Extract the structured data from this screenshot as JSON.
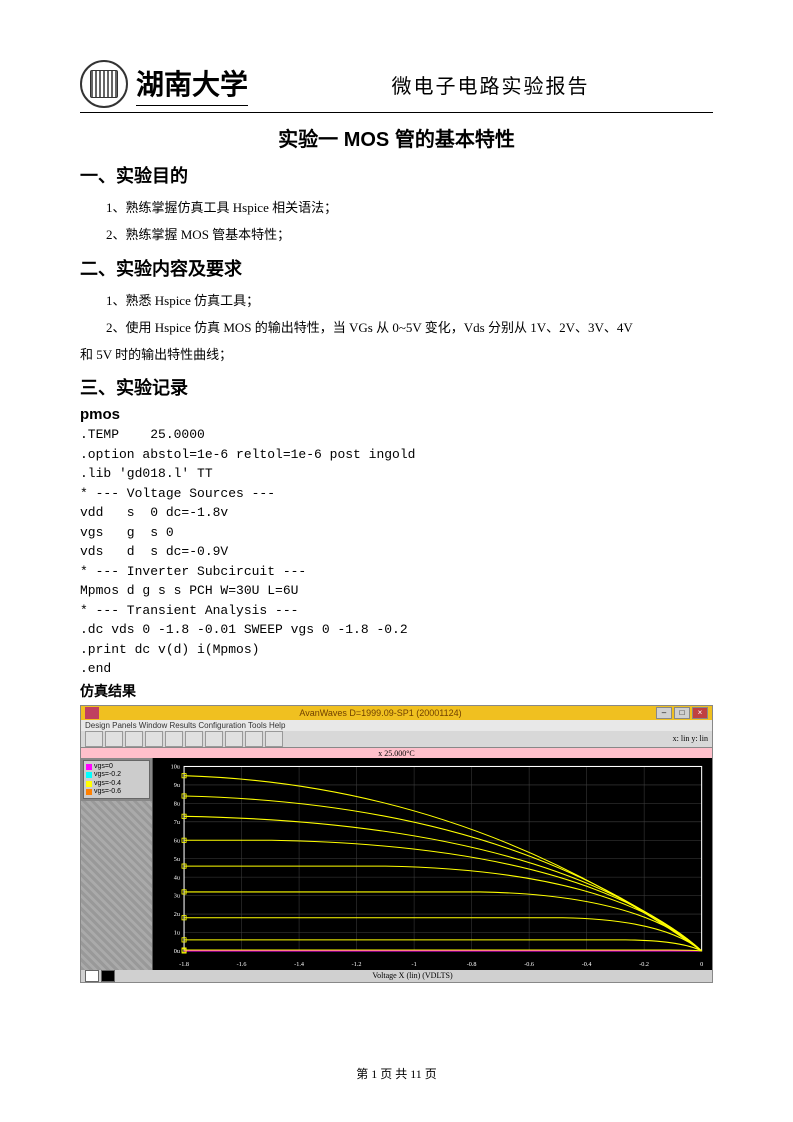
{
  "header": {
    "university": "湖南大学",
    "report_title": "微电子电路实验报告"
  },
  "main_title": "实验一  MOS 管的基本特性",
  "sections": {
    "s1_title": "一、实验目的",
    "s1_item1": "1、熟练掌握仿真工具 Hspice 相关语法；",
    "s1_item2": "2、熟练掌握 MOS 管基本特性；",
    "s2_title": "二、实验内容及要求",
    "s2_item1": "1、熟悉 Hspice 仿真工具；",
    "s2_item2": "2、使用 Hspice 仿真 MOS 的输出特性，当 VGs 从 0~5V 变化，Vds 分别从 1V、2V、3V、4V",
    "s2_item3": "和 5V 时的输出特性曲线；",
    "s3_title": "三、实验记录",
    "pmos_label": "pmos",
    "result_label": "仿真结果"
  },
  "code_lines": ".TEMP    25.0000\n.option abstol=1e-6 reltol=1e-6 post ingold\n.lib 'gd018.l' TT\n* --- Voltage Sources ---\nvdd   s  0 dc=-1.8v\nvgs   g  s 0\nvds   d  s dc=-0.9V\n* --- Inverter Subcircuit ---\nMpmos d g s s PCH W=30U L=6U\n* --- Transient Analysis ---\n.dc vds 0 -1.8 -0.01 SWEEP vgs 0 -1.8 -0.2\n.print dc v(d) i(Mpmos)\n.end",
  "sim": {
    "window_title": "AvanWaves D=1999.09-SP1 (20001124)",
    "menubar": "Design  Panels  Window  Results  Configuration  Tools  Help",
    "toolbar_text": "x: lin     y: lin",
    "plot_title": "x 25.000°C",
    "legend_items": [
      {
        "color": "#ff00ff",
        "label": "vgs=0"
      },
      {
        "color": "#00ffff",
        "label": "vgs=-0.2"
      },
      {
        "color": "#ffff00",
        "label": "vgs=-0.4"
      },
      {
        "color": "#ff8000",
        "label": "vgs=-0.6"
      }
    ],
    "status_text": "Voltage X (lin) (VDLTS)",
    "status_colors": [
      "#ffffff",
      "#000000"
    ],
    "chart": {
      "type": "line",
      "background": "#000000",
      "grid_color": "#404040",
      "axis_color": "#ffffff",
      "curve_color": "#ffff00",
      "highlight_color": "#ff00ff",
      "xlim": [
        -1.8,
        0
      ],
      "ylim": [
        0,
        10
      ],
      "x_ticks": [
        -1.8,
        -1.6,
        -1.4,
        -1.2,
        -1.0,
        -0.8,
        -0.6,
        -0.4,
        -0.2,
        0
      ],
      "y_ticks": [
        0,
        1,
        2,
        3,
        4,
        5,
        6,
        7,
        8,
        9,
        10
      ],
      "curves": [
        {
          "peak_y": 0.0,
          "knee_x": -1.78
        },
        {
          "peak_y": 0.05,
          "knee_x": -0.05
        },
        {
          "peak_y": 0.6,
          "knee_x": -0.12
        },
        {
          "peak_y": 1.8,
          "knee_x": -0.22
        },
        {
          "peak_y": 3.2,
          "knee_x": -0.35
        },
        {
          "peak_y": 4.6,
          "knee_x": -0.5
        },
        {
          "peak_y": 6.0,
          "knee_x": -0.68
        },
        {
          "peak_y": 7.3,
          "knee_x": -0.88
        },
        {
          "peak_y": 8.4,
          "knee_x": -1.1
        },
        {
          "peak_y": 9.5,
          "knee_x": -1.35
        }
      ]
    }
  },
  "footer": {
    "page_text_prefix": "第 ",
    "page_num": "1",
    "page_text_mid": " 页 共 ",
    "page_total": "11",
    "page_text_suffix": " 页"
  }
}
